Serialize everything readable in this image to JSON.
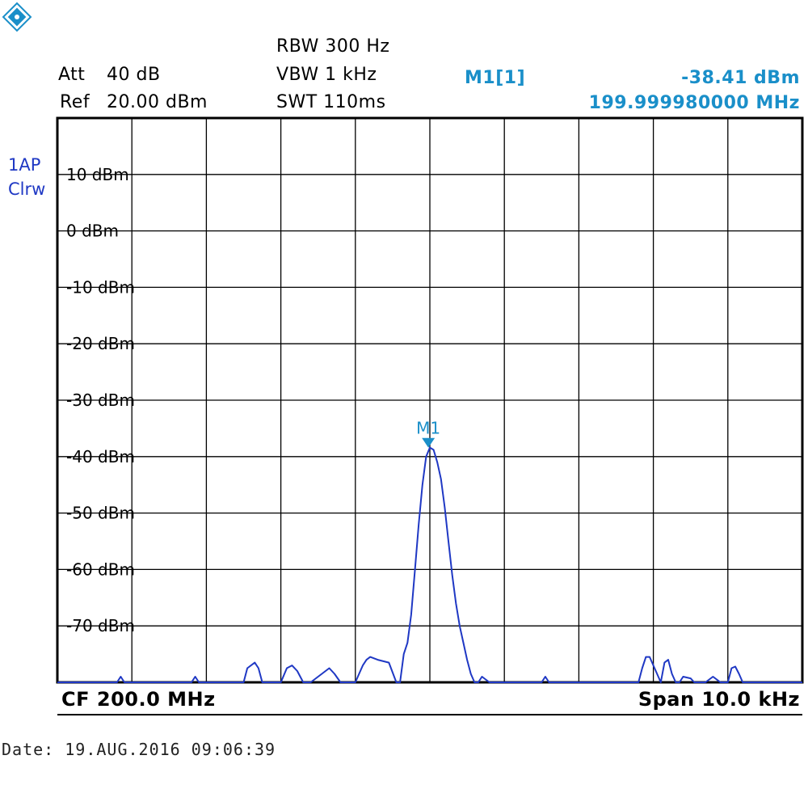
{
  "header": {
    "att_label": "Att",
    "att_value": "40 dB",
    "ref_label": "Ref",
    "ref_value": "20.00 dBm",
    "rbw": "RBW  300 Hz",
    "vbw": "VBW  1 kHz",
    "swt": "SWT  110ms",
    "marker_name": "M1[1]",
    "marker_level": "-38.41 dBm",
    "marker_freq": "199.999980000 MHz"
  },
  "trace": {
    "line1": "1AP",
    "line2": "Clrw",
    "color": "#1f38c4"
  },
  "footer": {
    "cf": "CF  200.0 MHz",
    "span": "Span  10.0 kHz",
    "date": "Date:  19.AUG.2016   09:06:39"
  },
  "colors": {
    "marker": "#1a8fc9",
    "trace": "#1f38c4",
    "grid": "#000000"
  },
  "chart_data": {
    "type": "line",
    "xlabel": "",
    "ylabel": "",
    "x_unit": "kHz offset from CF",
    "xlim": [
      -5,
      5
    ],
    "ylim": [
      -80,
      20
    ],
    "grid": true,
    "ytick_labels": [
      "10 dBm",
      "0 dBm",
      "-10 dBm",
      "-20 dBm",
      "-30 dBm",
      "-40 dBm",
      "-50 dBm",
      "-60 dBm",
      "-70 dBm"
    ],
    "ytick_values": [
      10,
      0,
      -10,
      -20,
      -30,
      -40,
      -50,
      -60,
      -70
    ],
    "marker": {
      "label": "M1",
      "x": -0.02,
      "y": -38.41
    },
    "series": [
      {
        "x": [
          -5.0,
          -4.2,
          -4.15,
          -4.1,
          -4.0,
          -3.2,
          -3.15,
          -3.1,
          -3.0,
          -2.5,
          -2.45,
          -2.35,
          -2.3,
          -2.25,
          -2.0,
          -1.92,
          -1.85,
          -1.78,
          -1.7,
          -1.6,
          -1.45,
          -1.35,
          -1.28,
          -1.2,
          -1.15,
          -1.12,
          -1.0,
          -0.95,
          -0.9,
          -0.85,
          -0.8,
          -0.7,
          -0.55,
          -0.45,
          -0.4,
          -0.35,
          -0.3,
          -0.25,
          -0.2,
          -0.15,
          -0.1,
          -0.05,
          0.0,
          0.05,
          0.1,
          0.15,
          0.2,
          0.25,
          0.3,
          0.35,
          0.4,
          0.45,
          0.5,
          0.55,
          0.6,
          0.65,
          0.7,
          0.75,
          0.8,
          0.85,
          0.9,
          1.0,
          1.5,
          1.55,
          1.6,
          1.7,
          2.8,
          2.85,
          2.9,
          2.95,
          3.05,
          3.1,
          3.15,
          3.2,
          3.25,
          3.3,
          3.35,
          3.4,
          3.5,
          3.55,
          3.6,
          3.7,
          3.8,
          3.9,
          4.0,
          4.05,
          4.1,
          4.15,
          4.2,
          4.3,
          5.0
        ],
        "y": [
          -80,
          -80,
          -79,
          -80,
          -80,
          -80,
          -79,
          -80,
          -80,
          -80,
          -77.5,
          -76.5,
          -77.5,
          -80,
          -80,
          -77.5,
          -77.0,
          -78,
          -80,
          -80,
          -78.5,
          -77.5,
          -78.5,
          -80,
          -80,
          -80,
          -80,
          -78.5,
          -77.0,
          -76.0,
          -75.5,
          -76.0,
          -76.5,
          -80,
          -80,
          -75,
          -73,
          -68,
          -60,
          -52,
          -45,
          -40,
          -38.4,
          -38.8,
          -41,
          -44,
          -49,
          -55,
          -61,
          -66,
          -70,
          -73,
          -76,
          -78.5,
          -80,
          -80,
          -79.0,
          -79.5,
          -80,
          -80,
          -80,
          -80,
          -80,
          -79,
          -80,
          -80,
          -80,
          -77.5,
          -75.5,
          -75.5,
          -78.5,
          -80,
          -76.5,
          -76.0,
          -78.5,
          -80,
          -80,
          -79.0,
          -79.3,
          -80,
          -80,
          -80,
          -79.0,
          -80,
          -80,
          -77.5,
          -77.2,
          -78.5,
          -80,
          -80,
          -80
        ]
      }
    ]
  }
}
